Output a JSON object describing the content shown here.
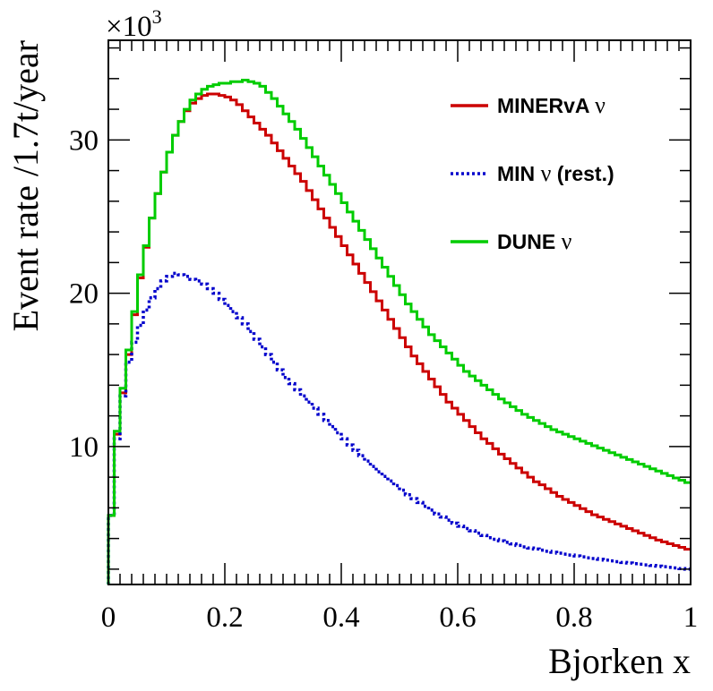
{
  "chart_data": {
    "type": "line",
    "title": "",
    "xlabel": "Bjorken x",
    "ylabel": "Event rate /1.7t/year",
    "y_multiplier_label": "×10",
    "y_multiplier_exponent": "3",
    "xlim": [
      0,
      1
    ],
    "ylim": [
      1000,
      36500
    ],
    "x_ticks": [
      0,
      0.2,
      0.4,
      0.6,
      0.8,
      1
    ],
    "x_tick_labels": [
      "0",
      "0.2",
      "0.4",
      "0.6",
      "0.8",
      "1"
    ],
    "y_ticks": [
      10000,
      20000,
      30000
    ],
    "y_tick_labels": [
      "10",
      "20",
      "30"
    ],
    "grid": false,
    "legend_position": "top-right",
    "x": [
      0.005,
      0.015,
      0.025,
      0.035,
      0.045,
      0.055,
      0.065,
      0.075,
      0.085,
      0.095,
      0.105,
      0.115,
      0.125,
      0.135,
      0.145,
      0.155,
      0.165,
      0.175,
      0.185,
      0.195,
      0.205,
      0.215,
      0.225,
      0.235,
      0.245,
      0.255,
      0.265,
      0.275,
      0.285,
      0.295,
      0.305,
      0.315,
      0.325,
      0.335,
      0.345,
      0.355,
      0.365,
      0.375,
      0.385,
      0.395,
      0.405,
      0.415,
      0.425,
      0.435,
      0.445,
      0.455,
      0.465,
      0.475,
      0.485,
      0.495,
      0.505,
      0.515,
      0.525,
      0.535,
      0.545,
      0.555,
      0.565,
      0.575,
      0.585,
      0.595,
      0.605,
      0.615,
      0.625,
      0.635,
      0.645,
      0.655,
      0.665,
      0.675,
      0.685,
      0.695,
      0.705,
      0.715,
      0.725,
      0.735,
      0.745,
      0.755,
      0.765,
      0.775,
      0.785,
      0.795,
      0.805,
      0.815,
      0.825,
      0.835,
      0.845,
      0.855,
      0.865,
      0.875,
      0.885,
      0.895,
      0.905,
      0.915,
      0.925,
      0.935,
      0.945,
      0.955,
      0.965,
      0.975,
      0.985,
      0.995
    ],
    "series": [
      {
        "name": "MINERvA ν",
        "color": "#cc0000",
        "dash": "solid",
        "values": [
          5500,
          10800,
          13500,
          16000,
          18600,
          21000,
          23000,
          24900,
          26500,
          27900,
          29200,
          30300,
          31200,
          31900,
          32400,
          32700,
          32900,
          33000,
          33000,
          32900,
          32800,
          32600,
          32300,
          31900,
          31500,
          31100,
          30700,
          30300,
          29800,
          29300,
          28800,
          28300,
          27800,
          27300,
          26700,
          26100,
          25500,
          24900,
          24300,
          23700,
          23100,
          22500,
          21900,
          21300,
          20700,
          20100,
          19500,
          18900,
          18300,
          17700,
          17100,
          16500,
          15900,
          15400,
          14900,
          14400,
          13900,
          13400,
          12900,
          12500,
          12100,
          11700,
          11300,
          10900,
          10500,
          10200,
          9850,
          9500,
          9200,
          8900,
          8600,
          8300,
          8000,
          7700,
          7500,
          7250,
          7000,
          6750,
          6550,
          6350,
          6150,
          5950,
          5750,
          5550,
          5400,
          5250,
          5100,
          4950,
          4800,
          4650,
          4500,
          4350,
          4200,
          4050,
          3900,
          3780,
          3660,
          3540,
          3420,
          3300
        ]
      },
      {
        "name": "MIN ν (rest.)",
        "color": "#0000cc",
        "dash": "dotted",
        "values": [
          5500,
          10500,
          13300,
          15500,
          16800,
          17900,
          18900,
          19700,
          20300,
          20800,
          21100,
          21300,
          21200,
          21100,
          20900,
          20800,
          20600,
          20300,
          20000,
          19600,
          19200,
          18800,
          18400,
          18000,
          17500,
          17000,
          16500,
          16000,
          15500,
          15000,
          14500,
          14100,
          13700,
          13300,
          12900,
          12500,
          12100,
          11700,
          11300,
          10900,
          10500,
          10100,
          9750,
          9400,
          9050,
          8700,
          8350,
          8050,
          7750,
          7450,
          7150,
          6850,
          6600,
          6350,
          6100,
          5850,
          5600,
          5400,
          5200,
          5000,
          4800,
          4650,
          4500,
          4350,
          4200,
          4050,
          3950,
          3850,
          3750,
          3650,
          3550,
          3450,
          3380,
          3310,
          3240,
          3170,
          3100,
          3040,
          2980,
          2920,
          2860,
          2800,
          2740,
          2690,
          2640,
          2590,
          2540,
          2490,
          2440,
          2400,
          2360,
          2320,
          2280,
          2240,
          2200,
          2160,
          2120,
          2080,
          2040,
          2000
        ]
      },
      {
        "name": "DUNE ν",
        "color": "#00cc00",
        "dash": "solid",
        "values": [
          5500,
          11000,
          13800,
          16300,
          18800,
          21200,
          23100,
          24900,
          26500,
          27900,
          29200,
          30300,
          31200,
          32000,
          32600,
          33000,
          33300,
          33500,
          33600,
          33700,
          33700,
          33800,
          33800,
          33900,
          33800,
          33700,
          33500,
          33100,
          32700,
          32200,
          31700,
          31200,
          30700,
          30100,
          29500,
          28900,
          28300,
          27700,
          27100,
          26500,
          25900,
          25300,
          24700,
          24100,
          23500,
          22900,
          22300,
          21700,
          21100,
          20500,
          19900,
          19300,
          18800,
          18300,
          17800,
          17300,
          16900,
          16500,
          16100,
          15700,
          15300,
          14900,
          14600,
          14300,
          14000,
          13700,
          13400,
          13100,
          12850,
          12600,
          12350,
          12100,
          11900,
          11700,
          11500,
          11300,
          11100,
          10950,
          10800,
          10650,
          10500,
          10350,
          10200,
          10050,
          9900,
          9750,
          9600,
          9450,
          9300,
          9150,
          9000,
          8850,
          8700,
          8550,
          8400,
          8250,
          8100,
          7950,
          7800,
          7650
        ]
      }
    ]
  }
}
